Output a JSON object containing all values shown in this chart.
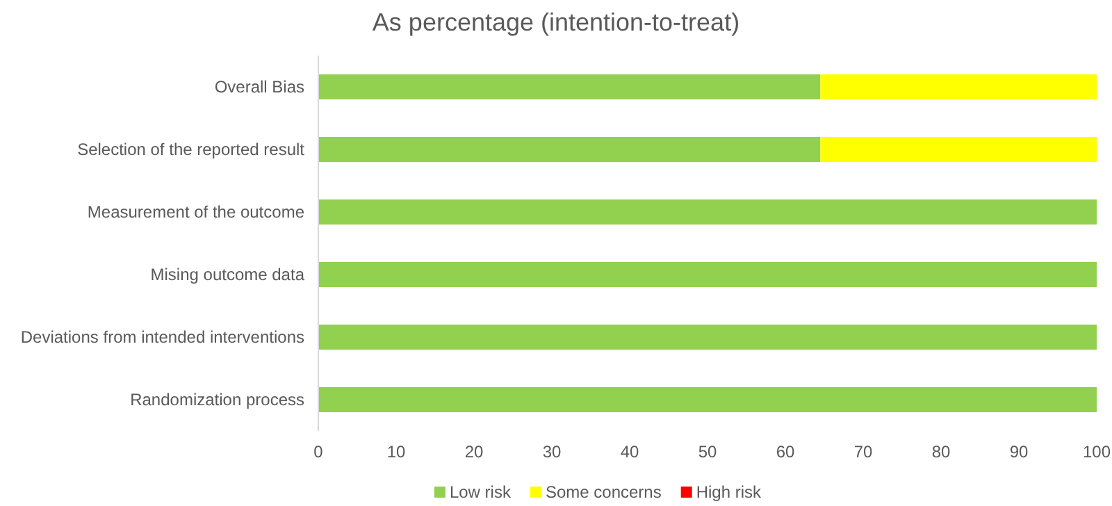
{
  "chart_data": {
    "type": "bar",
    "orientation": "horizontal",
    "stacked": true,
    "title": "As percentage (intention-to-treat)",
    "categories": [
      "Overall Bias",
      "Selection of the reported result",
      "Measurement of the outcome",
      "Mising outcome data",
      "Deviations from intended interventions",
      "Randomization process"
    ],
    "series": [
      {
        "name": "Low risk",
        "color": "#92d050",
        "values": [
          64.5,
          64.5,
          100,
          100,
          100,
          100
        ]
      },
      {
        "name": "Some concerns",
        "color": "#ffff00",
        "values": [
          35.5,
          35.5,
          0,
          0,
          0,
          0
        ]
      },
      {
        "name": "High risk",
        "color": "#ff0000",
        "values": [
          0,
          0,
          0,
          0,
          0,
          0
        ]
      }
    ],
    "xlim": [
      0,
      100
    ],
    "xticks": [
      0,
      10,
      20,
      30,
      40,
      50,
      60,
      70,
      80,
      90,
      100
    ],
    "grid": false,
    "legend": "bottom"
  }
}
